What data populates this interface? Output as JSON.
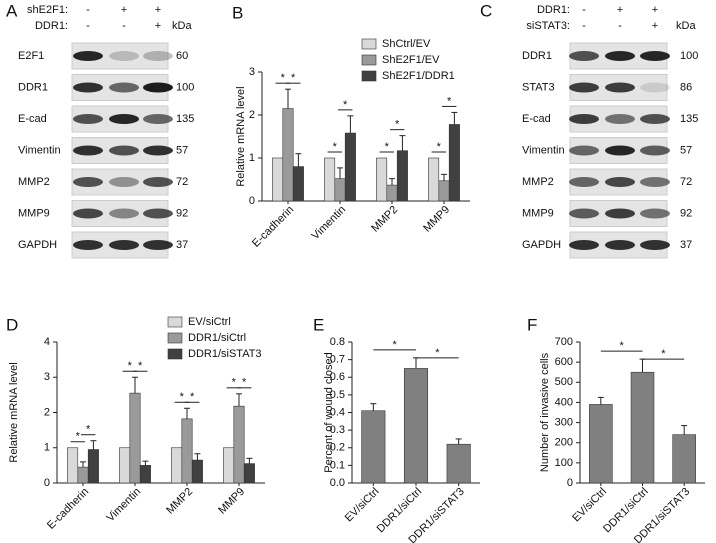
{
  "blots": [
    {
      "panel": "A",
      "conditions": [
        {
          "name": "shE2F1:",
          "signs": [
            "-",
            "+",
            "+"
          ]
        },
        {
          "name": "DDR1:",
          "signs": [
            "-",
            "-",
            "+"
          ]
        }
      ],
      "unit": "kDa",
      "rows": [
        {
          "protein": "E2F1",
          "kda": 60
        },
        {
          "protein": "DDR1",
          "kda": 100
        },
        {
          "protein": "E-cad",
          "kda": 135
        },
        {
          "protein": "Vimentin",
          "kda": 57
        },
        {
          "protein": "MMP2",
          "kda": 72
        },
        {
          "protein": "MMP9",
          "kda": 92
        },
        {
          "protein": "GAPDH",
          "kda": 37
        }
      ]
    },
    {
      "panel": "C",
      "conditions": [
        {
          "name": "DDR1:",
          "signs": [
            "-",
            "+",
            "+"
          ]
        },
        {
          "name": "siSTAT3:",
          "signs": [
            "-",
            "-",
            "+"
          ]
        }
      ],
      "unit": "kDa",
      "rows": [
        {
          "protein": "DDR1",
          "kda": 100
        },
        {
          "protein": "STAT3",
          "kda": 86
        },
        {
          "protein": "E-cad",
          "kda": 135
        },
        {
          "protein": "Vimentin",
          "kda": 57
        },
        {
          "protein": "MMP2",
          "kda": 72
        },
        {
          "protein": "MMP9",
          "kda": 92
        },
        {
          "protein": "GAPDH",
          "kda": 37
        }
      ]
    }
  ],
  "chart_data": [
    {
      "type": "bar",
      "panel": "B",
      "y_label": "Relative mRNA level",
      "categories": [
        "E-cadherin",
        "Vimentin",
        "MMP2",
        "MMP9"
      ],
      "series": [
        {
          "name": "ShCtrl/EV",
          "color": "#d9d9d9",
          "values": [
            1,
            1,
            1,
            1
          ]
        },
        {
          "name": "ShE2F1/EV",
          "color": "#9a9a9a",
          "values": [
            2.15,
            0.52,
            0.37,
            0.47
          ],
          "errors": [
            0.45,
            0.25,
            0.15,
            0.15
          ]
        },
        {
          "name": "ShE2F1/DDR1",
          "color": "#404040",
          "values": [
            0.8,
            1.58,
            1.17,
            1.78
          ],
          "errors": [
            0.3,
            0.4,
            0.35,
            0.28
          ]
        }
      ],
      "ylim": [
        0,
        3
      ],
      "yticks": [
        0,
        1,
        2,
        3
      ],
      "significance_marks": [
        "*",
        "*",
        "*",
        "*",
        "*",
        "*",
        "*",
        "*"
      ]
    },
    {
      "type": "bar",
      "panel": "D",
      "y_label": "Relative mRNA level",
      "categories": [
        "E-cadherin",
        "Vimentin",
        "MMP2",
        "MMP9"
      ],
      "series": [
        {
          "name": "EV/siCtrl",
          "color": "#d9d9d9",
          "values": [
            1,
            1,
            1,
            1
          ]
        },
        {
          "name": "DDR1/siCtrl",
          "color": "#9a9a9a",
          "values": [
            0.45,
            2.55,
            1.82,
            2.18
          ],
          "errors": [
            0.15,
            0.45,
            0.3,
            0.35
          ]
        },
        {
          "name": "DDR1/siSTAT3",
          "color": "#404040",
          "values": [
            0.95,
            0.5,
            0.65,
            0.55
          ],
          "errors": [
            0.25,
            0.12,
            0.18,
            0.15
          ]
        }
      ],
      "ylim": [
        0,
        4
      ],
      "yticks": [
        0,
        1,
        2,
        3,
        4
      ],
      "significance_marks": [
        "*",
        "*",
        "*",
        "*",
        "*",
        "*",
        "*",
        "*"
      ]
    },
    {
      "type": "bar",
      "panel": "E",
      "y_label": "Percent of wound closed",
      "categories": [
        "EV/siCtrl",
        "DDR1/siCtrl",
        "DDR1/siSTAT3"
      ],
      "values": [
        0.41,
        0.65,
        0.22
      ],
      "errors": [
        0.04,
        0.06,
        0.03
      ],
      "color": "#808080",
      "ylim": [
        0,
        0.8
      ],
      "yticks": [
        {
          "value": 0,
          "label": "0.0"
        },
        0.1,
        0.2,
        0.3,
        0.4,
        0.5,
        0.6,
        0.7,
        0.8
      ],
      "significance_marks": [
        "*",
        "*"
      ]
    },
    {
      "type": "bar",
      "panel": "F",
      "y_label": "Number of invasive cells",
      "categories": [
        "EV/siCtrl",
        "DDR1/siCtrl",
        "DDR1/siSTAT3"
      ],
      "values": [
        390,
        550,
        240
      ],
      "errors": [
        35,
        65,
        45
      ],
      "color": "#808080",
      "ylim": [
        0,
        700
      ],
      "yticks": [
        0,
        100,
        200,
        300,
        400,
        500,
        600,
        700
      ],
      "significance_marks": [
        "*",
        "*"
      ]
    }
  ]
}
